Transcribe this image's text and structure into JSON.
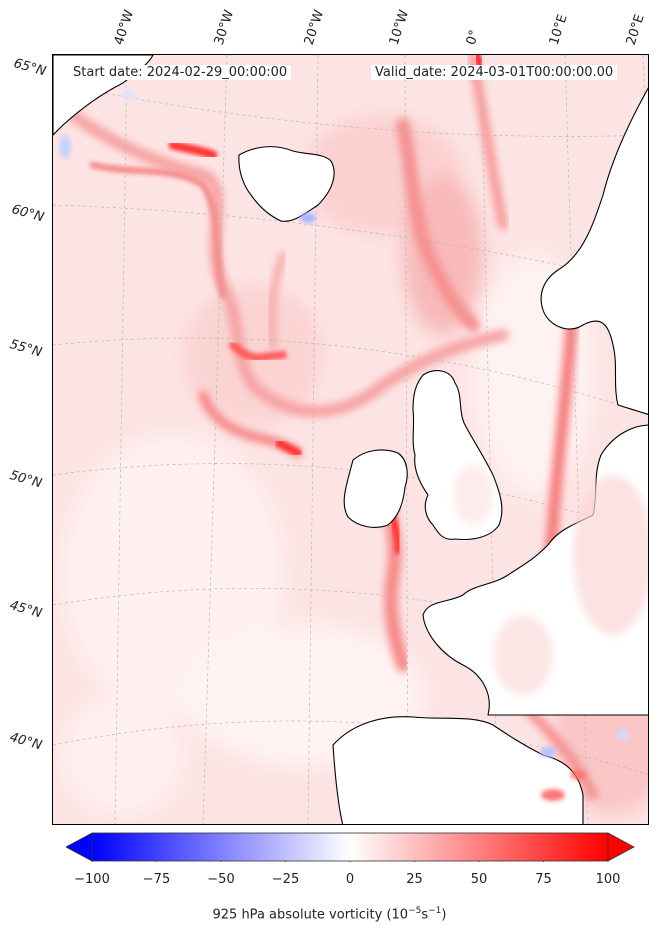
{
  "header": {
    "start_date": "Start date: 2024-02-29_00:00:00",
    "valid_date": "Valid_date: 2024-03-01T00:00:00.00"
  },
  "longitude_labels": [
    "40°W",
    "30°W",
    "20°W",
    "10°W",
    "0°",
    "10°E",
    "20°E"
  ],
  "latitude_labels": [
    "65°N",
    "60°N",
    "55°N",
    "50°N",
    "45°N",
    "40°N"
  ],
  "colorbar": {
    "min": -100,
    "max": 100,
    "ticks": [
      "−100",
      "−75",
      "−50",
      "−25",
      "0",
      "25",
      "50",
      "75",
      "100"
    ],
    "label_main": "925 hPa absolute vorticity (10",
    "label_sup1": "−5",
    "label_mid": "s",
    "label_sup2": "−1",
    "label_end": ")",
    "colormap": "bwr"
  },
  "colors": {
    "land": "#ffffff",
    "sea_base": "#fde4e4",
    "strong_positive": "#ff3b3b",
    "negative": "#c8d2ff",
    "coast": "#000000"
  }
}
